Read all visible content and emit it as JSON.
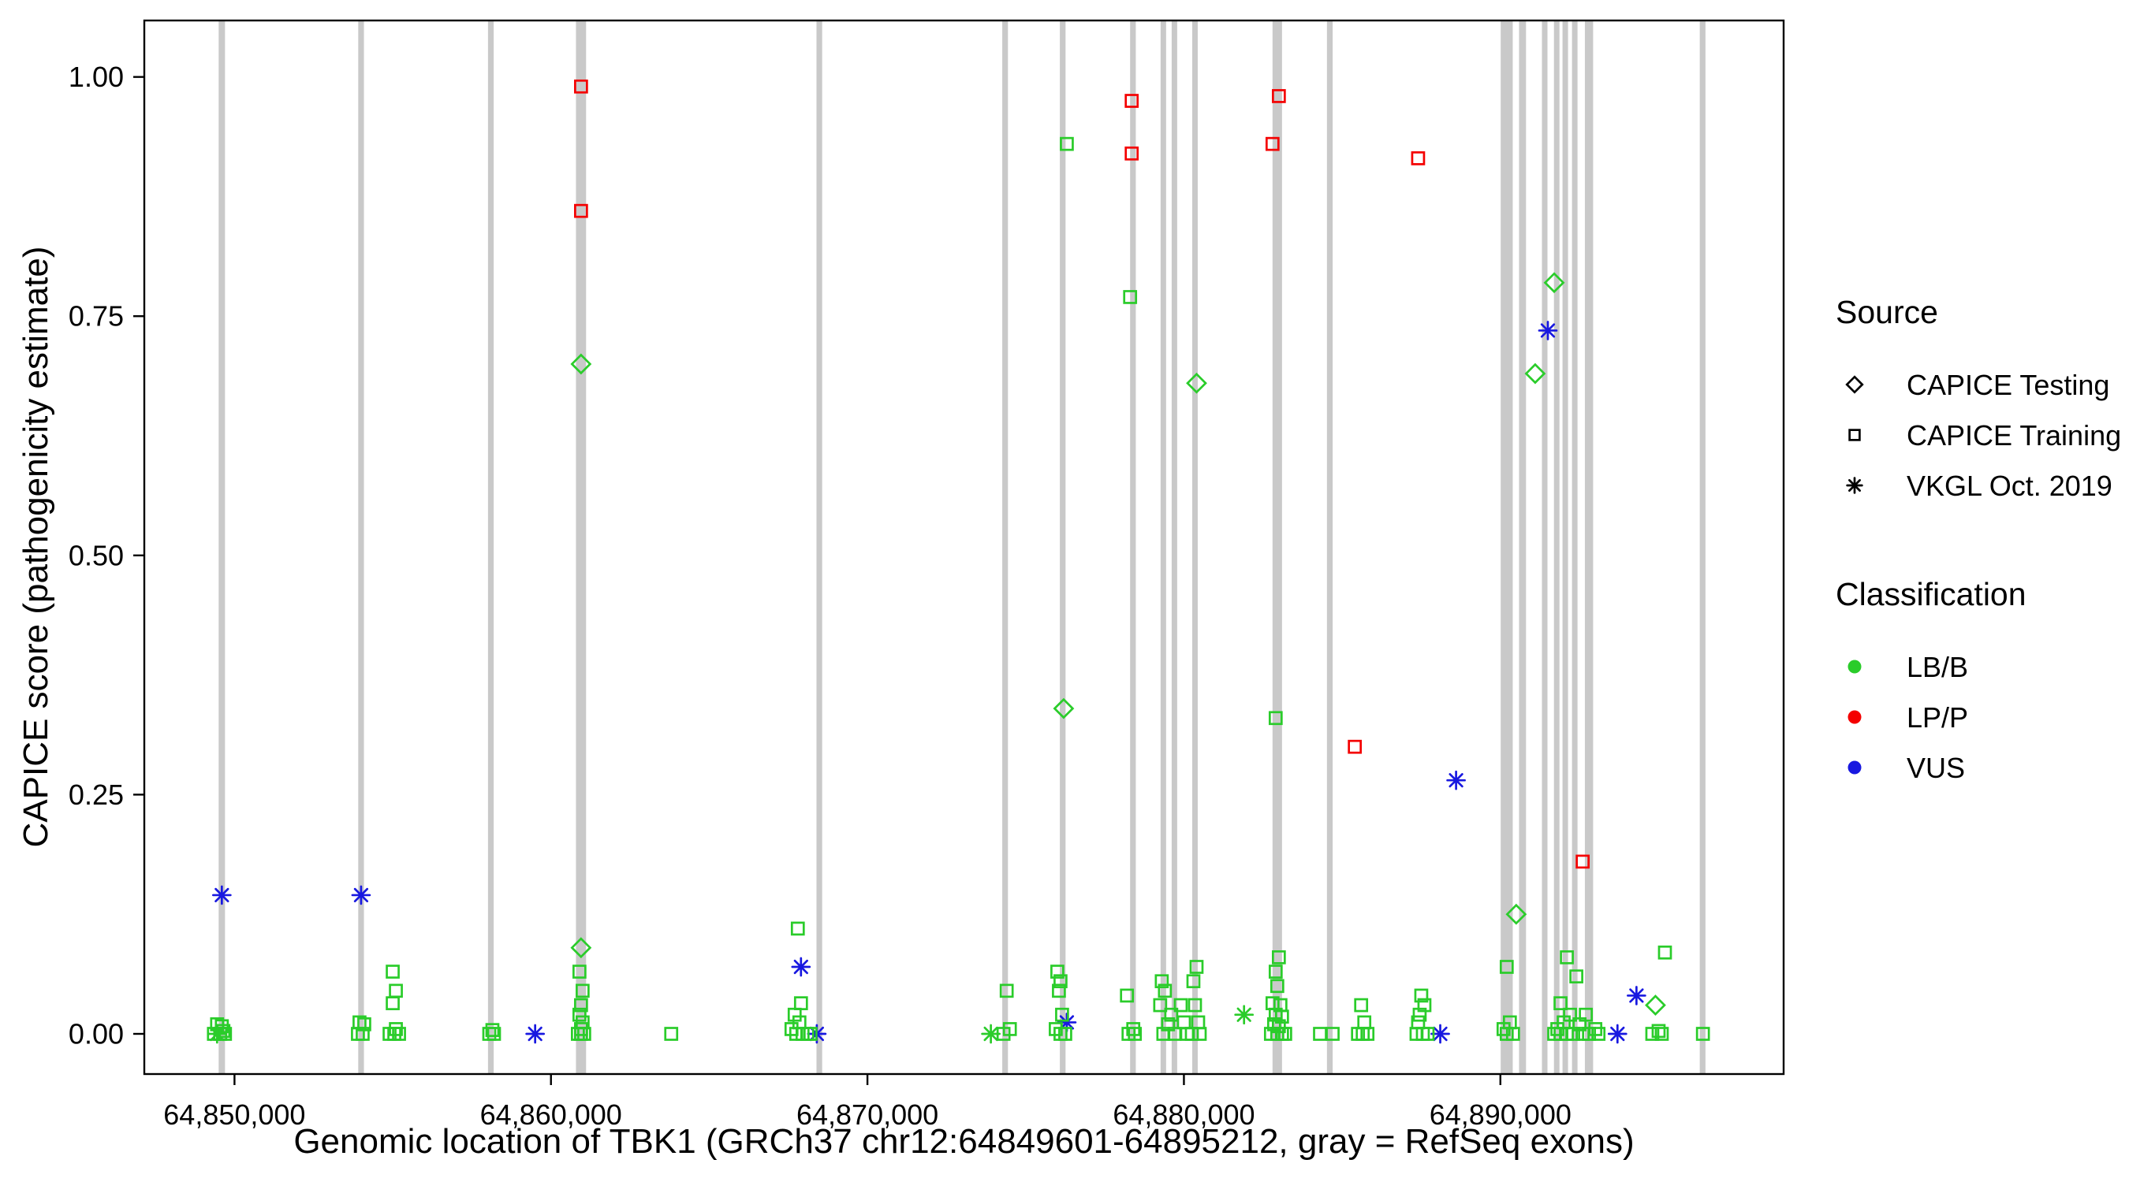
{
  "chart_data": {
    "type": "scatter",
    "title": "",
    "xlabel": "Genomic location of TBK1 (GRCh37 chr12:64849601-64895212, gray = RefSeq exons)",
    "ylabel": "CAPICE score (pathogenicity estimate)",
    "xlim": [
      64847150,
      64898950
    ],
    "ylim": [
      -0.042,
      1.059
    ],
    "grid": false,
    "x_ticks": [
      {
        "v": 64850000,
        "label": "64,850,000"
      },
      {
        "v": 64860000,
        "label": "64,860,000"
      },
      {
        "v": 64870000,
        "label": "64,870,000"
      },
      {
        "v": 64880000,
        "label": "64,880,000"
      },
      {
        "v": 64890000,
        "label": "64,890,000"
      }
    ],
    "y_ticks": [
      {
        "v": 0.0,
        "label": "0.00"
      },
      {
        "v": 0.25,
        "label": "0.25"
      },
      {
        "v": 0.5,
        "label": "0.50"
      },
      {
        "v": 0.75,
        "label": "0.75"
      },
      {
        "v": 1.0,
        "label": "1.00"
      }
    ],
    "exon_color": "#c9c9c9",
    "exons_note": "pairs of [genomic_center, width_bp], gray = RefSeq exons",
    "exons": [
      [
        64849600,
        200
      ],
      [
        64854000,
        180
      ],
      [
        64858100,
        180
      ],
      [
        64860950,
        320
      ],
      [
        64868480,
        180
      ],
      [
        64874350,
        180
      ],
      [
        64876170,
        180
      ],
      [
        64878390,
        180
      ],
      [
        64879350,
        140
      ],
      [
        64879700,
        140
      ],
      [
        64880350,
        170
      ],
      [
        64882950,
        300
      ],
      [
        64884610,
        180
      ],
      [
        64890200,
        380
      ],
      [
        64890700,
        220
      ],
      [
        64891400,
        140
      ],
      [
        64891780,
        140
      ],
      [
        64892050,
        140
      ],
      [
        64892350,
        140
      ],
      [
        64892800,
        260
      ],
      [
        64896390,
        180
      ]
    ],
    "colors": {
      "LB/B": "#2acc2a",
      "LP/P": "#f40000",
      "VUS": "#1818e0"
    },
    "source_codes": {
      "d": "CAPICE Testing",
      "s": "CAPICE Training",
      "a": "VKGL Oct. 2019"
    },
    "class_codes": {
      "g": "LB/B",
      "r": "LP/P",
      "b": "VUS"
    },
    "points_format": [
      "genomic_position",
      "capice_score",
      "source_code",
      "class_code"
    ],
    "points": [
      [
        64860950,
        0.99,
        "s",
        "r"
      ],
      [
        64860950,
        0.86,
        "s",
        "r"
      ],
      [
        64878350,
        0.975,
        "s",
        "r"
      ],
      [
        64878350,
        0.92,
        "s",
        "r"
      ],
      [
        64883000,
        0.98,
        "s",
        "r"
      ],
      [
        64882800,
        0.93,
        "s",
        "r"
      ],
      [
        64887400,
        0.915,
        "s",
        "r"
      ],
      [
        64885400,
        0.3,
        "s",
        "r"
      ],
      [
        64892600,
        0.18,
        "s",
        "r"
      ],
      [
        64860950,
        0.7,
        "d",
        "g"
      ],
      [
        64860950,
        0.09,
        "d",
        "g"
      ],
      [
        64876200,
        0.34,
        "d",
        "g"
      ],
      [
        64880400,
        0.68,
        "d",
        "g"
      ],
      [
        64890500,
        0.125,
        "d",
        "g"
      ],
      [
        64891100,
        0.69,
        "d",
        "g"
      ],
      [
        64891700,
        0.785,
        "d",
        "g"
      ],
      [
        64894900,
        0.03,
        "d",
        "g"
      ],
      [
        64849600,
        0.145,
        "a",
        "b"
      ],
      [
        64854000,
        0.145,
        "a",
        "b"
      ],
      [
        64859500,
        0.0,
        "a",
        "b"
      ],
      [
        64867900,
        0.07,
        "a",
        "b"
      ],
      [
        64868400,
        0.0,
        "a",
        "b"
      ],
      [
        64876300,
        0.012,
        "a",
        "b"
      ],
      [
        64888600,
        0.265,
        "a",
        "b"
      ],
      [
        64888100,
        0.0,
        "a",
        "b"
      ],
      [
        64891500,
        0.735,
        "a",
        "b"
      ],
      [
        64894300,
        0.04,
        "a",
        "b"
      ],
      [
        64893700,
        0.0,
        "a",
        "b"
      ],
      [
        64873900,
        0.0,
        "a",
        "g"
      ],
      [
        64881900,
        0.02,
        "a",
        "g"
      ],
      [
        64849450,
        0.0,
        "a",
        "g"
      ],
      [
        64849450,
        0.01,
        "s",
        "g"
      ],
      [
        64849600,
        0.008,
        "s",
        "g"
      ],
      [
        64849700,
        0.0,
        "s",
        "g"
      ],
      [
        64849350,
        0.0,
        "s",
        "g"
      ],
      [
        64849550,
        0.0,
        "s",
        "g"
      ],
      [
        64849650,
        0.003,
        "s",
        "g"
      ],
      [
        64853950,
        0.012,
        "s",
        "g"
      ],
      [
        64854100,
        0.01,
        "s",
        "g"
      ],
      [
        64854050,
        0.0,
        "s",
        "g"
      ],
      [
        64853900,
        0.0,
        "s",
        "g"
      ],
      [
        64855000,
        0.065,
        "s",
        "g"
      ],
      [
        64855100,
        0.045,
        "s",
        "g"
      ],
      [
        64855000,
        0.032,
        "s",
        "g"
      ],
      [
        64855100,
        0.005,
        "s",
        "g"
      ],
      [
        64854900,
        0.0,
        "s",
        "g"
      ],
      [
        64855200,
        0.0,
        "s",
        "g"
      ],
      [
        64855050,
        0.0,
        "s",
        "g"
      ],
      [
        64858050,
        0.0,
        "s",
        "g"
      ],
      [
        64858200,
        0.0,
        "s",
        "g"
      ],
      [
        64858150,
        0.004,
        "s",
        "g"
      ],
      [
        64860900,
        0.065,
        "s",
        "g"
      ],
      [
        64861000,
        0.045,
        "s",
        "g"
      ],
      [
        64860950,
        0.03,
        "s",
        "g"
      ],
      [
        64860900,
        0.02,
        "s",
        "g"
      ],
      [
        64861000,
        0.012,
        "s",
        "g"
      ],
      [
        64860950,
        0.005,
        "s",
        "g"
      ],
      [
        64860850,
        0.0,
        "s",
        "g"
      ],
      [
        64861050,
        0.0,
        "s",
        "g"
      ],
      [
        64860950,
        0.0,
        "s",
        "g"
      ],
      [
        64863800,
        0.0,
        "s",
        "g"
      ],
      [
        64867800,
        0.11,
        "s",
        "g"
      ],
      [
        64867900,
        0.032,
        "s",
        "g"
      ],
      [
        64867700,
        0.02,
        "s",
        "g"
      ],
      [
        64867850,
        0.012,
        "s",
        "g"
      ],
      [
        64867600,
        0.005,
        "s",
        "g"
      ],
      [
        64867950,
        0.0,
        "s",
        "g"
      ],
      [
        64868100,
        0.0,
        "s",
        "g"
      ],
      [
        64867750,
        0.0,
        "s",
        "g"
      ],
      [
        64868200,
        0.0,
        "s",
        "g"
      ],
      [
        64874400,
        0.045,
        "s",
        "g"
      ],
      [
        64874500,
        0.005,
        "s",
        "g"
      ],
      [
        64874300,
        0.0,
        "s",
        "g"
      ],
      [
        64876300,
        0.93,
        "s",
        "g"
      ],
      [
        64876000,
        0.065,
        "s",
        "g"
      ],
      [
        64876100,
        0.055,
        "s",
        "g"
      ],
      [
        64876050,
        0.045,
        "s",
        "g"
      ],
      [
        64876150,
        0.02,
        "s",
        "g"
      ],
      [
        64875950,
        0.005,
        "s",
        "g"
      ],
      [
        64876250,
        0.0,
        "s",
        "g"
      ],
      [
        64876100,
        0.0,
        "s",
        "g"
      ],
      [
        64878300,
        0.77,
        "s",
        "g"
      ],
      [
        64878200,
        0.04,
        "s",
        "g"
      ],
      [
        64878400,
        0.005,
        "s",
        "g"
      ],
      [
        64878250,
        0.0,
        "s",
        "g"
      ],
      [
        64878450,
        0.0,
        "s",
        "g"
      ],
      [
        64879300,
        0.055,
        "s",
        "g"
      ],
      [
        64879400,
        0.045,
        "s",
        "g"
      ],
      [
        64879250,
        0.03,
        "s",
        "g"
      ],
      [
        64879600,
        0.02,
        "s",
        "g"
      ],
      [
        64879500,
        0.01,
        "s",
        "g"
      ],
      [
        64879350,
        0.0,
        "s",
        "g"
      ],
      [
        64879700,
        0.0,
        "s",
        "g"
      ],
      [
        64879900,
        0.03,
        "s",
        "g"
      ],
      [
        64880000,
        0.012,
        "s",
        "g"
      ],
      [
        64880100,
        0.0,
        "s",
        "g"
      ],
      [
        64880300,
        0.055,
        "s",
        "g"
      ],
      [
        64880400,
        0.07,
        "s",
        "g"
      ],
      [
        64880350,
        0.03,
        "s",
        "g"
      ],
      [
        64880450,
        0.012,
        "s",
        "g"
      ],
      [
        64880250,
        0.0,
        "s",
        "g"
      ],
      [
        64880500,
        0.0,
        "s",
        "g"
      ],
      [
        64882900,
        0.33,
        "s",
        "g"
      ],
      [
        64883000,
        0.08,
        "s",
        "g"
      ],
      [
        64882900,
        0.065,
        "s",
        "g"
      ],
      [
        64882950,
        0.05,
        "s",
        "g"
      ],
      [
        64882800,
        0.032,
        "s",
        "g"
      ],
      [
        64883050,
        0.03,
        "s",
        "g"
      ],
      [
        64882900,
        0.02,
        "s",
        "g"
      ],
      [
        64883100,
        0.018,
        "s",
        "g"
      ],
      [
        64882850,
        0.01,
        "s",
        "g"
      ],
      [
        64883000,
        0.008,
        "s",
        "g"
      ],
      [
        64882950,
        0.0,
        "s",
        "g"
      ],
      [
        64883100,
        0.0,
        "s",
        "g"
      ],
      [
        64882750,
        0.0,
        "s",
        "g"
      ],
      [
        64883200,
        0.0,
        "s",
        "g"
      ],
      [
        64884300,
        0.0,
        "s",
        "g"
      ],
      [
        64884700,
        0.0,
        "s",
        "g"
      ],
      [
        64885600,
        0.03,
        "s",
        "g"
      ],
      [
        64885700,
        0.012,
        "s",
        "g"
      ],
      [
        64885500,
        0.0,
        "s",
        "g"
      ],
      [
        64885800,
        0.0,
        "s",
        "g"
      ],
      [
        64885650,
        0.0,
        "s",
        "g"
      ],
      [
        64887500,
        0.04,
        "s",
        "g"
      ],
      [
        64887600,
        0.03,
        "s",
        "g"
      ],
      [
        64887450,
        0.02,
        "s",
        "g"
      ],
      [
        64887400,
        0.012,
        "s",
        "g"
      ],
      [
        64887550,
        0.0,
        "s",
        "g"
      ],
      [
        64887700,
        0.0,
        "s",
        "g"
      ],
      [
        64887350,
        0.0,
        "s",
        "g"
      ],
      [
        64890200,
        0.07,
        "s",
        "g"
      ],
      [
        64890300,
        0.012,
        "s",
        "g"
      ],
      [
        64890100,
        0.005,
        "s",
        "g"
      ],
      [
        64890400,
        0.0,
        "s",
        "g"
      ],
      [
        64890200,
        0.0,
        "s",
        "g"
      ],
      [
        64892100,
        0.08,
        "s",
        "g"
      ],
      [
        64892400,
        0.06,
        "s",
        "g"
      ],
      [
        64891900,
        0.032,
        "s",
        "g"
      ],
      [
        64892200,
        0.02,
        "s",
        "g"
      ],
      [
        64892000,
        0.012,
        "s",
        "g"
      ],
      [
        64891800,
        0.005,
        "s",
        "g"
      ],
      [
        64892300,
        0.0,
        "s",
        "g"
      ],
      [
        64891900,
        0.0,
        "s",
        "g"
      ],
      [
        64892100,
        0.0,
        "s",
        "g"
      ],
      [
        64892600,
        0.0,
        "s",
        "g"
      ],
      [
        64891700,
        0.0,
        "s",
        "g"
      ],
      [
        64892800,
        0.0,
        "s",
        "g"
      ],
      [
        64893000,
        0.005,
        "s",
        "g"
      ],
      [
        64892500,
        0.01,
        "s",
        "g"
      ],
      [
        64892700,
        0.02,
        "s",
        "g"
      ],
      [
        64893100,
        0.0,
        "s",
        "g"
      ],
      [
        64895200,
        0.085,
        "s",
        "g"
      ],
      [
        64894800,
        0.0,
        "s",
        "g"
      ],
      [
        64895100,
        0.0,
        "s",
        "g"
      ],
      [
        64896400,
        0.0,
        "s",
        "g"
      ],
      [
        64895000,
        0.003,
        "s",
        "g"
      ]
    ],
    "legend": {
      "source": {
        "title": "Source",
        "items": [
          {
            "shape": "diamond",
            "label": "CAPICE Testing"
          },
          {
            "shape": "square",
            "label": "CAPICE Training"
          },
          {
            "shape": "asterisk",
            "label": "VKGL Oct. 2019"
          }
        ]
      },
      "classification": {
        "title": "Classification",
        "items": [
          {
            "class": "LB/B",
            "label": "LB/B"
          },
          {
            "class": "LP/P",
            "label": "LP/P"
          },
          {
            "class": "VUS",
            "label": "VUS"
          }
        ]
      }
    }
  }
}
